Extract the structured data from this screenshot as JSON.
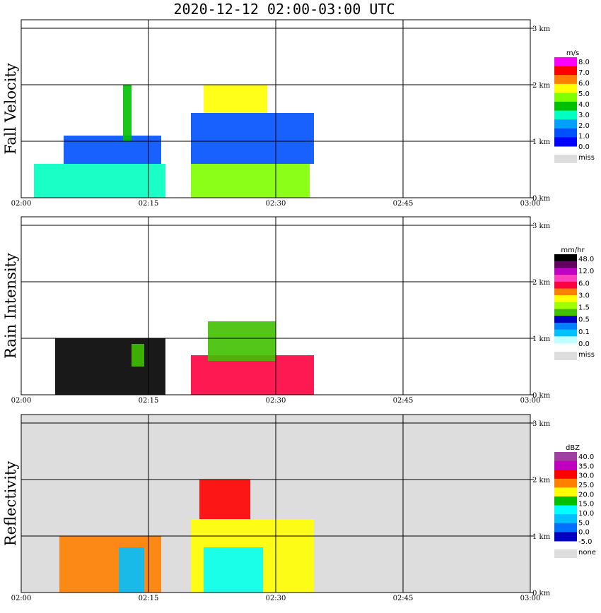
{
  "title": "2020-12-12   02:00-03:00 UTC",
  "x_ticks": [
    "02:00",
    "02:15",
    "02:30",
    "02:45",
    "03:00"
  ],
  "y_ticks": [
    "0 km",
    "1 km",
    "2 km",
    "3 km"
  ],
  "chart_data": [
    {
      "type": "heatmap",
      "ylabel": "Fall Velocity",
      "background": "#ffffff",
      "x_range": [
        "02:00",
        "03:00"
      ],
      "y_range_km": [
        0,
        3.2
      ],
      "colorbar": {
        "unit": "m/s",
        "levels": [
          "8.0",
          "7.0",
          "6.0",
          "5.0",
          "4.0",
          "3.0",
          "2.0",
          "1.0",
          "0.0",
          "miss"
        ],
        "colors": [
          "#ff00ff",
          "#ff0000",
          "#ff7f00",
          "#ffff00",
          "#80ff00",
          "#00c000",
          "#00ffc0",
          "#00a0ff",
          "#0050ff",
          "#0000ff",
          "#dddddd"
        ]
      },
      "echo_blocks": [
        {
          "t0": 1.5,
          "t1": 17.0,
          "h0": 0.0,
          "h1": 0.6,
          "v": 3
        },
        {
          "t0": 20.0,
          "t1": 34.0,
          "h0": 0.0,
          "h1": 0.6,
          "v": 5
        },
        {
          "t0": 20.0,
          "t1": 34.5,
          "h0": 0.6,
          "h1": 1.5,
          "v": 1
        },
        {
          "t0": 5.0,
          "t1": 16.5,
          "h0": 0.6,
          "h1": 1.1,
          "v": 1
        },
        {
          "t0": 21.5,
          "t1": 29.0,
          "h0": 1.5,
          "h1": 2.0,
          "v": 6
        },
        {
          "t0": 12.0,
          "t1": 13.0,
          "h0": 1.0,
          "h1": 2.0,
          "v": 4
        }
      ]
    },
    {
      "type": "heatmap",
      "ylabel": "Rain Intensity",
      "background": "#ffffff",
      "x_range": [
        "02:00",
        "03:00"
      ],
      "y_range_km": [
        0,
        3.2
      ],
      "colorbar": {
        "unit": "mm/hr",
        "levels": [
          "48.0",
          "12.0",
          "6.0",
          "3.0",
          "1.5",
          "0.5",
          "0.1",
          "0.0",
          "miss"
        ],
        "colors": [
          "#000000",
          "#600060",
          "#c000c0",
          "#ff40c0",
          "#ff0040",
          "#ff8000",
          "#ffff00",
          "#a0ff00",
          "#40c000",
          "#0000c0",
          "#0080ff",
          "#00c0ff",
          "#c0ffff",
          "#dddddd"
        ]
      },
      "echo_blocks": [
        {
          "t0": 4.0,
          "t1": 17.0,
          "h0": 0.0,
          "h1": 1.0,
          "v": 12
        },
        {
          "t0": 20.0,
          "t1": 34.5,
          "h0": 0.0,
          "h1": 0.7,
          "v": 8
        },
        {
          "t0": 22.0,
          "t1": 30.0,
          "h0": 0.6,
          "h1": 1.3,
          "v": 4
        },
        {
          "t0": 13.0,
          "t1": 14.5,
          "h0": 0.5,
          "h1": 0.9,
          "v": 4
        }
      ]
    },
    {
      "type": "heatmap",
      "ylabel": "Reflectivity",
      "background": "#dddddd",
      "x_range": [
        "02:00",
        "03:00"
      ],
      "y_range_km": [
        0,
        3.2
      ],
      "colorbar": {
        "unit": "dBZ",
        "levels": [
          "40.0",
          "35.0",
          "30.0",
          "25.0",
          "20.0",
          "15.0",
          "10.0",
          "5.0",
          "0.0",
          "-5.0",
          "none"
        ],
        "colors": [
          "#a040a0",
          "#c000c0",
          "#ff0000",
          "#ff8000",
          "#ffff00",
          "#00c000",
          "#00ffff",
          "#00c0ff",
          "#0070ff",
          "#0000c0",
          "#dddddd"
        ]
      },
      "echo_blocks": [
        {
          "t0": 4.5,
          "t1": 16.5,
          "h0": 0.0,
          "h1": 1.0,
          "v": 6
        },
        {
          "t0": 20.0,
          "t1": 34.5,
          "h0": 0.0,
          "h1": 1.3,
          "v": 5
        },
        {
          "t0": 21.5,
          "t1": 28.5,
          "h0": 0.0,
          "h1": 0.8,
          "v": 3
        },
        {
          "t0": 11.5,
          "t1": 14.5,
          "h0": 0.0,
          "h1": 0.8,
          "v": 2
        },
        {
          "t0": 21.0,
          "t1": 27.0,
          "h0": 1.3,
          "h1": 2.0,
          "v": 7
        }
      ]
    }
  ]
}
